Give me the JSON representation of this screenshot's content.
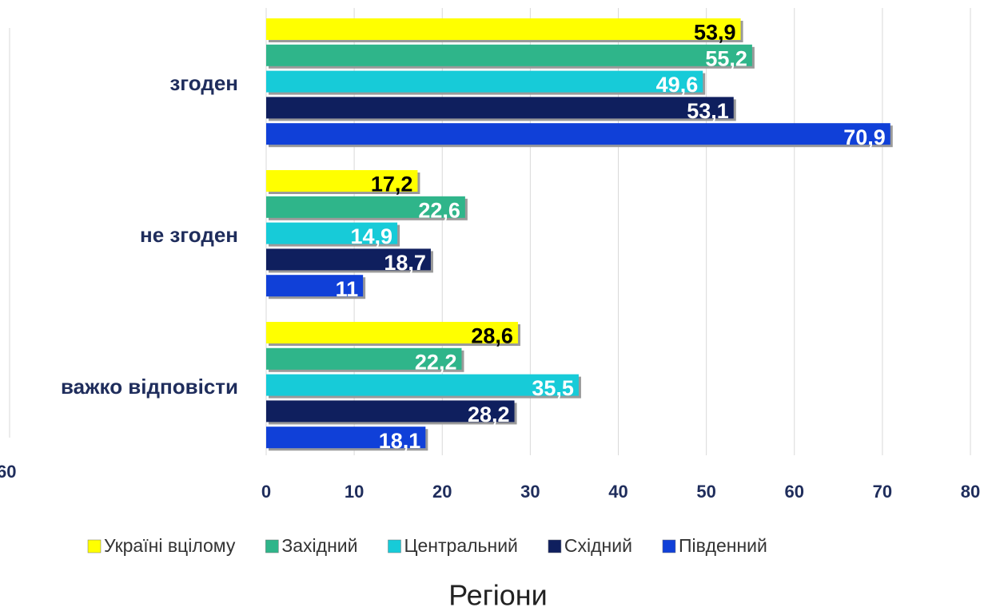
{
  "chart_data": {
    "type": "bar",
    "orientation": "horizontal",
    "xlabel": "Регіони",
    "categories": [
      "згоден",
      "не згоден",
      "важко відповісти"
    ],
    "series": [
      {
        "name": "Україні вцілому",
        "color": "#ffff00",
        "values": [
          53.9,
          17.2,
          28.6
        ],
        "value_labels": [
          "53,9",
          "17,2",
          "28,6"
        ]
      },
      {
        "name": "Західний",
        "color": "#2fb58a",
        "values": [
          55.2,
          22.6,
          22.2
        ],
        "value_labels": [
          "55,2",
          "22,6",
          "22,2"
        ]
      },
      {
        "name": "Центральний",
        "color": "#17cbd8",
        "values": [
          49.6,
          14.9,
          35.5
        ],
        "value_labels": [
          "49,6",
          "14,9",
          "35,5"
        ]
      },
      {
        "name": "Східний",
        "color": "#0f1f5e",
        "values": [
          53.1,
          18.7,
          28.2
        ],
        "value_labels": [
          "53,1",
          "18,7",
          "28,2"
        ]
      },
      {
        "name": "Південний",
        "color": "#1040d8",
        "values": [
          70.9,
          11,
          18.1
        ],
        "value_labels": [
          "70,9",
          "11",
          "18,1"
        ]
      }
    ],
    "xlim": [
      0,
      80
    ],
    "xticks": [
      0,
      10,
      20,
      30,
      40,
      50,
      60,
      70,
      80
    ],
    "grid": true,
    "legend": "bottom",
    "left_fragment_label": "60"
  }
}
